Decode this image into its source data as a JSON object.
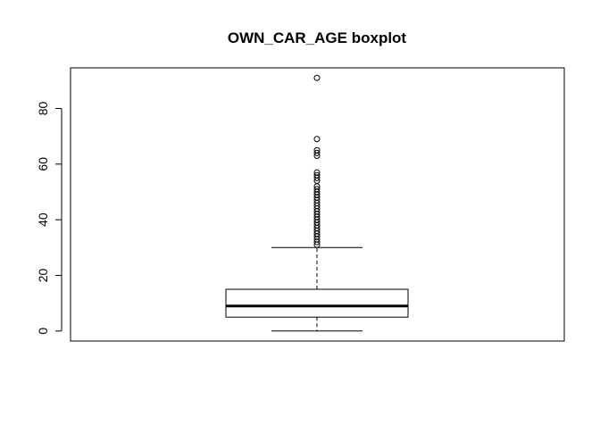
{
  "chart_data": {
    "type": "boxplot",
    "title": "OWN_CAR_AGE boxplot",
    "xlabel": "",
    "ylabel": "",
    "ylim": [
      -3.6,
      94.6
    ],
    "y_ticks": [
      0,
      20,
      40,
      60,
      80
    ],
    "grid": false,
    "box": {
      "min": 0,
      "q1": 5,
      "median": 9,
      "q3": 15,
      "max": 30
    },
    "outliers": [
      31,
      32,
      33,
      34,
      35,
      36,
      37,
      38,
      39,
      40,
      41,
      42,
      43,
      44,
      45,
      46,
      47,
      48,
      49,
      50,
      51,
      52,
      54,
      55,
      56,
      57,
      63,
      64,
      65,
      69,
      91
    ]
  }
}
